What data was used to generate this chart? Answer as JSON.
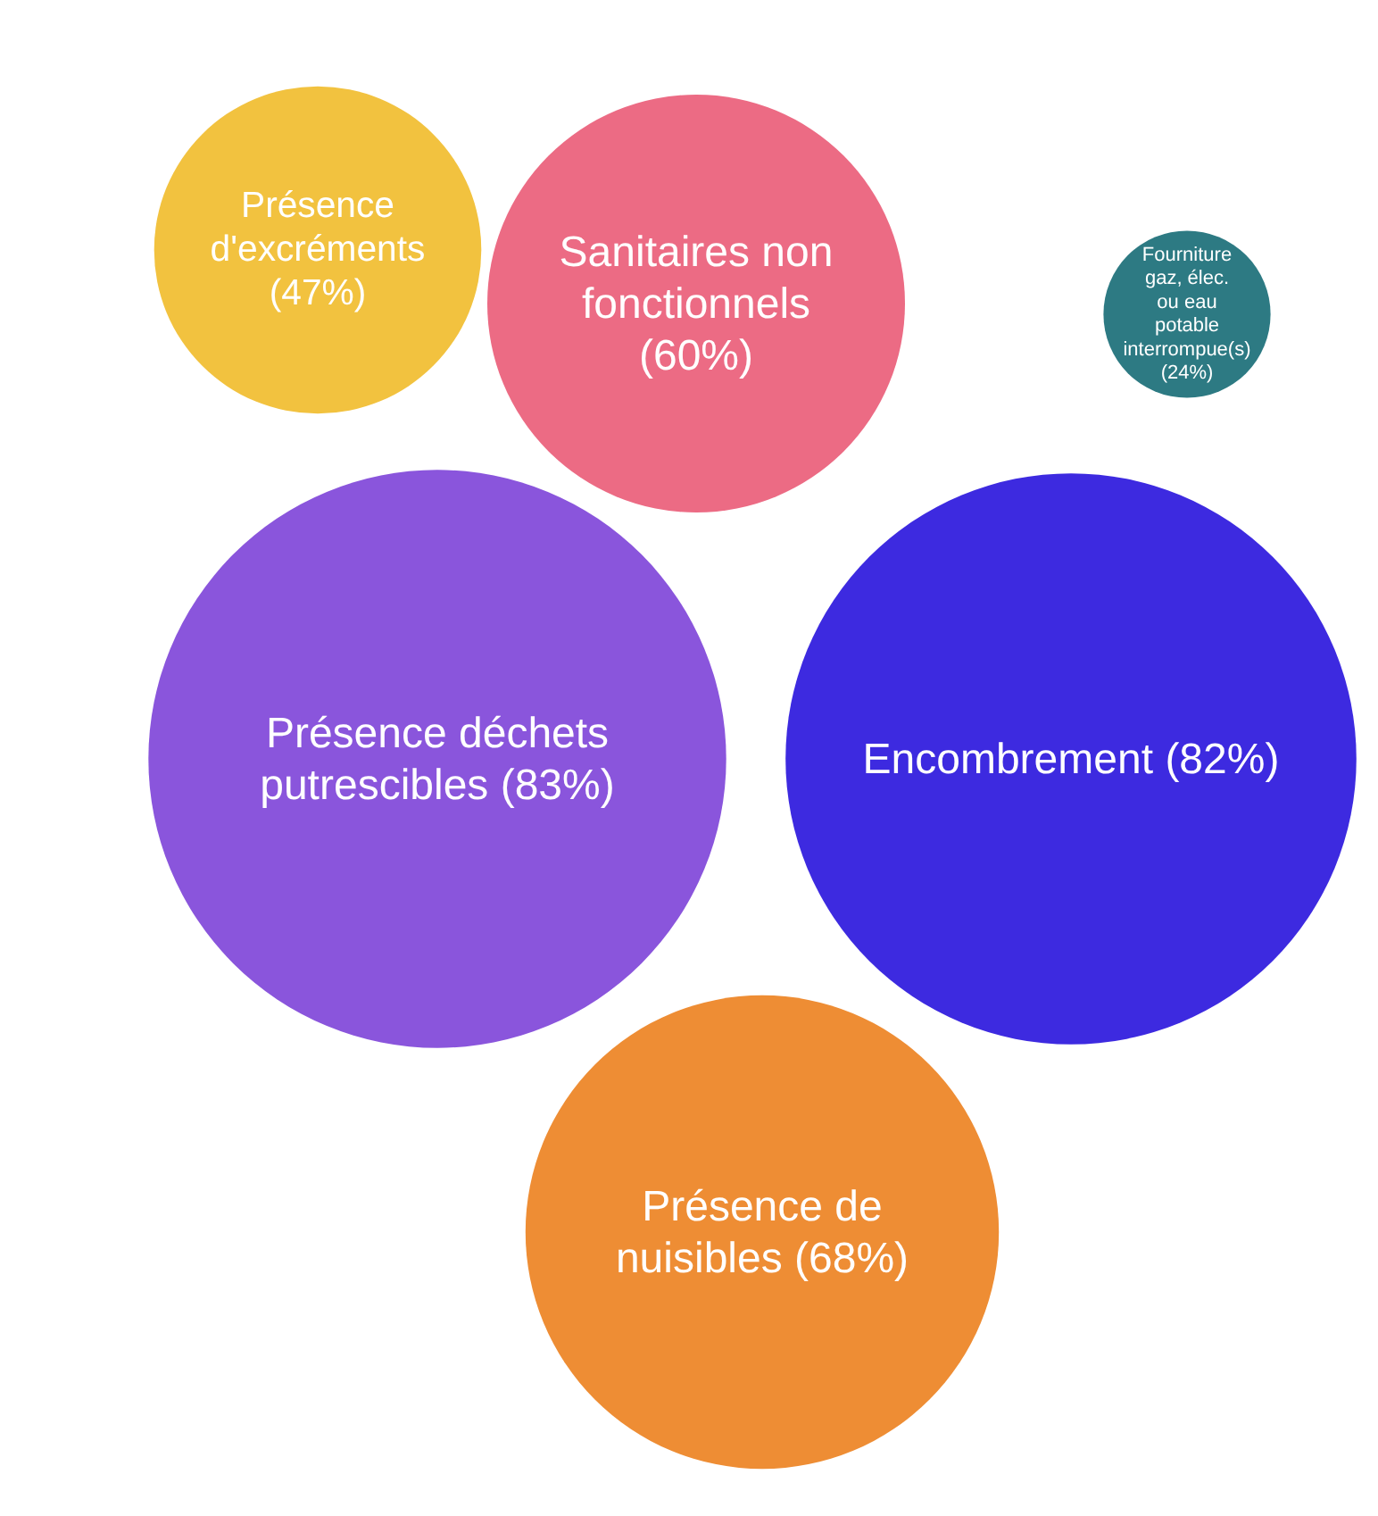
{
  "chart_data": {
    "type": "other",
    "categories": [
      "Présence d'excréments",
      "Sanitaires non fonctionnels",
      "Fourniture gaz, élec. ou eau potable interrompue(s)",
      "Présence déchets putrescibles",
      "Encombrement",
      "Présence de nuisibles"
    ],
    "values": [
      47,
      60,
      24,
      83,
      82,
      68
    ],
    "value_labels": [
      "(47%)",
      "(60%)",
      "(24%)",
      "(83%)",
      "(82%)",
      "(68%)"
    ],
    "colors": [
      "#f2c23f",
      "#ec6b84",
      "#2d7a83",
      "#8a55dc",
      "#3d2ae0",
      "#ee8d34"
    ]
  }
}
